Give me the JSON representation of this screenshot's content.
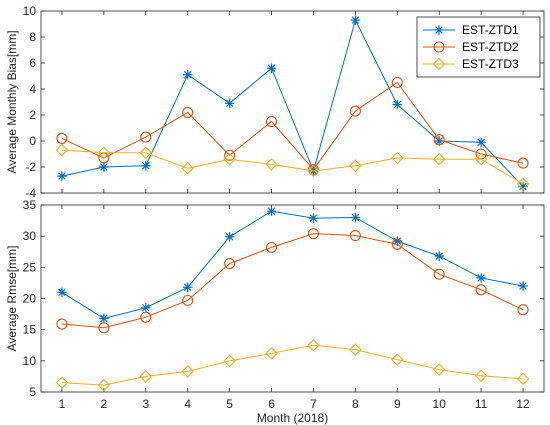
{
  "colors": {
    "EST-ZTD1": "#0072BD",
    "EST-ZTD2": "#D95319",
    "EST-ZTD3": "#EDB120",
    "axis": "#262626",
    "plot_bg": "#ffffff"
  },
  "chart_data": [
    {
      "type": "line",
      "ylabel": "Average Monthly Bias[mm]",
      "xlabel": "",
      "x": [
        1,
        2,
        3,
        4,
        5,
        6,
        7,
        8,
        9,
        10,
        11,
        12
      ],
      "xlim": [
        0.5,
        12.5
      ],
      "ylim": [
        -4,
        10
      ],
      "yticks": [
        -4,
        -2,
        0,
        2,
        4,
        6,
        8,
        10
      ],
      "grid": false,
      "legend": "top-right",
      "series": [
        {
          "name": "EST-ZTD1",
          "marker": "asterisk",
          "values": [
            -2.7,
            -2.0,
            -1.9,
            5.1,
            2.9,
            5.6,
            -2.3,
            9.3,
            2.8,
            0.0,
            -0.1,
            -3.5
          ]
        },
        {
          "name": "EST-ZTD2",
          "marker": "circle",
          "values": [
            0.2,
            -1.3,
            0.3,
            2.2,
            -1.1,
            1.5,
            -2.2,
            2.3,
            4.5,
            0.1,
            -1.0,
            -1.7
          ]
        },
        {
          "name": "EST-ZTD3",
          "marker": "diamond",
          "values": [
            -0.7,
            -0.9,
            -0.9,
            -2.1,
            -1.4,
            -1.8,
            -2.3,
            -1.9,
            -1.3,
            -1.4,
            -1.4,
            -3.3
          ]
        }
      ]
    },
    {
      "type": "line",
      "ylabel": "Average Rmse[mm]",
      "xlabel": "Month (2018)",
      "x": [
        1,
        2,
        3,
        4,
        5,
        6,
        7,
        8,
        9,
        10,
        11,
        12
      ],
      "xlim": [
        0.5,
        12.5
      ],
      "ylim": [
        5,
        35
      ],
      "yticks": [
        5,
        10,
        15,
        20,
        25,
        30,
        35
      ],
      "xticks": [
        1,
        2,
        3,
        4,
        5,
        6,
        7,
        8,
        9,
        10,
        11,
        12
      ],
      "grid": false,
      "series": [
        {
          "name": "EST-ZTD1",
          "marker": "asterisk",
          "values": [
            21.0,
            16.8,
            18.5,
            21.8,
            29.9,
            34.0,
            32.9,
            33.0,
            29.2,
            26.8,
            23.3,
            22.0
          ]
        },
        {
          "name": "EST-ZTD2",
          "marker": "circle",
          "values": [
            15.9,
            15.3,
            17.0,
            19.7,
            25.6,
            28.2,
            30.4,
            30.1,
            28.7,
            23.9,
            21.4,
            18.2
          ]
        },
        {
          "name": "EST-ZTD3",
          "marker": "diamond",
          "values": [
            6.5,
            6.1,
            7.5,
            8.3,
            10.0,
            11.2,
            12.5,
            11.8,
            10.2,
            8.6,
            7.6,
            7.1
          ]
        }
      ]
    }
  ]
}
